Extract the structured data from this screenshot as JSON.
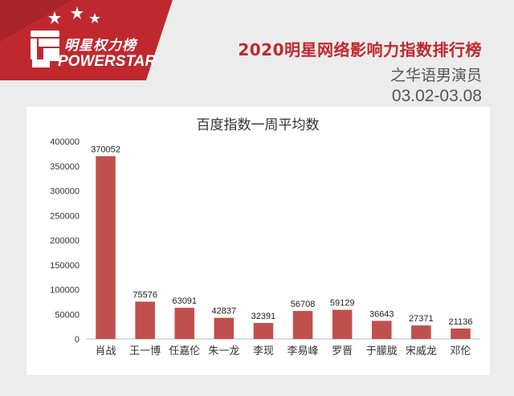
{
  "banner": {
    "logo_zh": "明星权力榜",
    "logo_en": "POWERSTAR",
    "colors": {
      "red": "#c0282f",
      "dark_red": "#8e1f25"
    },
    "icon": "fist-icon"
  },
  "header": {
    "title": "2020明星网络影响力指数排行榜",
    "subtitle": "之华语男演员",
    "date_range": "03.02-03.08"
  },
  "chart_data": {
    "type": "bar",
    "title": "百度指数一周平均数",
    "categories": [
      "肖战",
      "王一博",
      "任嘉伦",
      "朱一龙",
      "李现",
      "李易峰",
      "罗晋",
      "于朦胧",
      "宋威龙",
      "邓伦"
    ],
    "values": [
      370052,
      75576,
      63091,
      42837,
      32391,
      56708,
      59129,
      36643,
      27371,
      21136
    ],
    "ylim": [
      0,
      400000
    ],
    "yticks": [
      0,
      50000,
      100000,
      150000,
      200000,
      250000,
      300000,
      350000,
      400000
    ],
    "grid": false,
    "bar_color": "#c0504d",
    "show_data_labels": true
  }
}
